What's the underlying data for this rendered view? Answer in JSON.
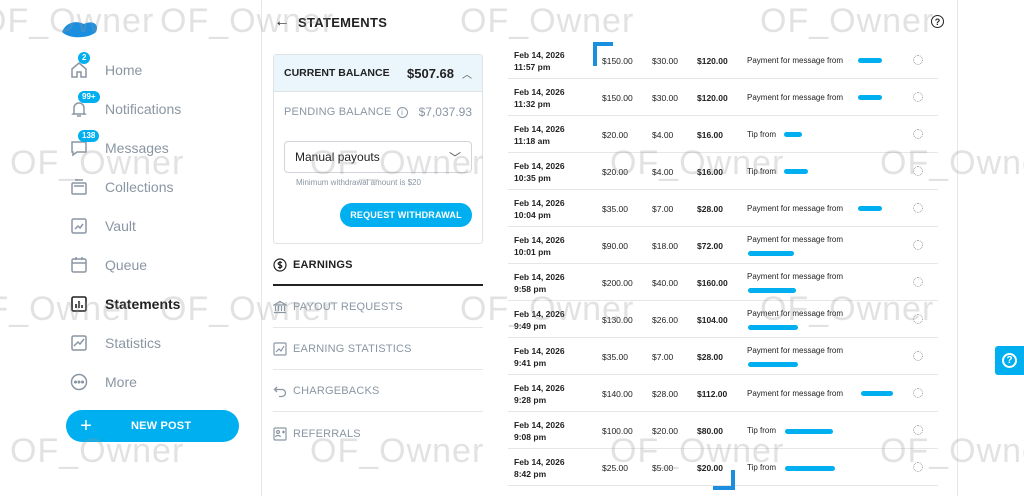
{
  "header": {
    "title": "STATEMENTS",
    "back_icon": "arrow-left-icon",
    "help_icon": "question-circle-icon"
  },
  "sidebar": {
    "items": [
      {
        "label": "Home",
        "icon": "home-icon",
        "badge": "2"
      },
      {
        "label": "Notifications",
        "icon": "bell-icon",
        "badge": "99+"
      },
      {
        "label": "Messages",
        "icon": "message-icon",
        "badge": "138"
      },
      {
        "label": "Collections",
        "icon": "collections-icon",
        "badge": ""
      },
      {
        "label": "Vault",
        "icon": "vault-icon",
        "badge": ""
      },
      {
        "label": "Queue",
        "icon": "calendar-icon",
        "badge": ""
      },
      {
        "label": "Statements",
        "icon": "bar-chart-icon",
        "badge": "",
        "active": true
      },
      {
        "label": "Statistics",
        "icon": "line-chart-icon",
        "badge": ""
      },
      {
        "label": "More",
        "icon": "more-icon",
        "badge": ""
      }
    ],
    "new_post_label": "NEW POST"
  },
  "balance": {
    "current_label": "CURRENT BALANCE",
    "current_value": "$507.68",
    "pending_label": "PENDING BALANCE",
    "pending_value": "$7,037.93",
    "payout_select_value": "Manual payouts",
    "min_note": "Minimum withdrawal amount is $20",
    "withdraw_label": "REQUEST WITHDRAWAL"
  },
  "menu": [
    {
      "label": "EARNINGS",
      "icon": "dollar-circle-icon",
      "active": true
    },
    {
      "label": "PAYOUT REQUESTS",
      "icon": "bank-icon"
    },
    {
      "label": "EARNING STATISTICS",
      "icon": "chart-icon"
    },
    {
      "label": "CHARGEBACKS",
      "icon": "undo-icon"
    },
    {
      "label": "REFERRALS",
      "icon": "referral-icon"
    }
  ],
  "transactions": [
    {
      "date": "Feb 14, 2026",
      "time": "11:57 pm",
      "amount": "$150.00",
      "fee": "$30.00",
      "net": "$120.00",
      "description": "Payment for message from"
    },
    {
      "date": "Feb 14, 2026",
      "time": "11:32 pm",
      "amount": "$150.00",
      "fee": "$30.00",
      "net": "$120.00",
      "description": "Payment for message from"
    },
    {
      "date": "Feb 14, 2026",
      "time": "11:18 am",
      "amount": "$20.00",
      "fee": "$4.00",
      "net": "$16.00",
      "description": "Tip from"
    },
    {
      "date": "Feb 14, 2026",
      "time": "10:35 pm",
      "amount": "$20.00",
      "fee": "$4.00",
      "net": "$16.00",
      "description": "Tip from"
    },
    {
      "date": "Feb 14, 2026",
      "time": "10:04 pm",
      "amount": "$35.00",
      "fee": "$7.00",
      "net": "$28.00",
      "description": "Payment for message from"
    },
    {
      "date": "Feb 14, 2026",
      "time": "10:01 pm",
      "amount": "$90.00",
      "fee": "$18.00",
      "net": "$72.00",
      "description": "Payment for message from"
    },
    {
      "date": "Feb 14, 2026",
      "time": "9:58 pm",
      "amount": "$200.00",
      "fee": "$40.00",
      "net": "$160.00",
      "description": "Payment for message from"
    },
    {
      "date": "Feb 14, 2026",
      "time": "9:49 pm",
      "amount": "$130.00",
      "fee": "$26.00",
      "net": "$104.00",
      "description": "Payment for message from"
    },
    {
      "date": "Feb 14, 2026",
      "time": "9:41 pm",
      "amount": "$35.00",
      "fee": "$7.00",
      "net": "$28.00",
      "description": "Payment for message from"
    },
    {
      "date": "Feb 14, 2026",
      "time": "9:28 pm",
      "amount": "$140.00",
      "fee": "$28.00",
      "net": "$112.00",
      "description": "Payment for message from"
    },
    {
      "date": "Feb 14, 2026",
      "time": "9:08 pm",
      "amount": "$100.00",
      "fee": "$20.00",
      "net": "$80.00",
      "description": "Tip from"
    },
    {
      "date": "Feb 14, 2026",
      "time": "8:42 pm",
      "amount": "$25.00",
      "fee": "$5.00",
      "net": "$20.00",
      "description": "Tip from"
    }
  ],
  "watermark": "OF_Owner",
  "colors": {
    "accent": "#00aff0",
    "text": "#222222",
    "muted": "#8a96a3",
    "highlight_bg": "#eaf6fc"
  }
}
